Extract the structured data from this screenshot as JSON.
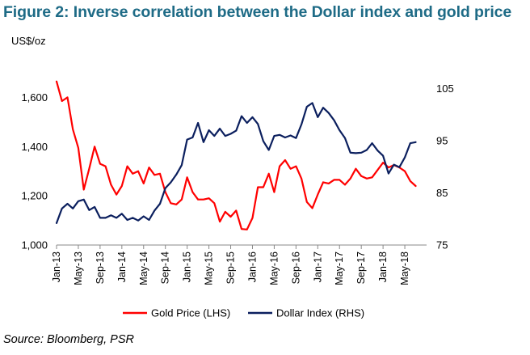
{
  "figure": {
    "title": "Figure 2: Inverse correlation between the Dollar index and gold price",
    "source": "Source: Bloomberg, PSR"
  },
  "chart_data": {
    "type": "line",
    "title": "Figure 2: Inverse correlation between the Dollar index and gold price",
    "left_axis_unit": "US$/oz",
    "left_axis": {
      "min": 1000,
      "max": 1700,
      "ticks": [
        1000,
        1200,
        1400,
        1600
      ],
      "tick_labels": [
        "1,000",
        "1,200",
        "1,400",
        "1,600"
      ]
    },
    "right_axis": {
      "min": 75,
      "max": 108,
      "ticks": [
        75,
        85,
        95,
        105
      ],
      "tick_labels": [
        "75",
        "85",
        "95",
        "105"
      ]
    },
    "x_tick_labels": [
      "Jan-13",
      "May-13",
      "Sep-13",
      "Jan-14",
      "May-14",
      "Sep-14",
      "Jan-15",
      "May-15",
      "Sep-15",
      "Jan-16",
      "May-16",
      "Sep-16",
      "Jan-17",
      "May-17",
      "Sep-17",
      "Jan-18",
      "May-18"
    ],
    "x_tick_month_index": [
      0,
      4,
      8,
      12,
      16,
      20,
      24,
      28,
      32,
      36,
      40,
      44,
      48,
      52,
      56,
      60,
      64
    ],
    "x_range_months": [
      0,
      68
    ],
    "grid": false,
    "legend_placement": "bottom",
    "series": [
      {
        "name": "Gold Price (LHS)",
        "axis": "left",
        "color": "#ff0000",
        "month_index": [
          0,
          1,
          2,
          3,
          4,
          5,
          6,
          7,
          8,
          9,
          10,
          11,
          12,
          13,
          14,
          15,
          16,
          17,
          18,
          19,
          20,
          21,
          22,
          23,
          24,
          25,
          26,
          27,
          28,
          29,
          30,
          31,
          32,
          33,
          34,
          35,
          36,
          37,
          38,
          39,
          40,
          41,
          42,
          43,
          44,
          45,
          46,
          47,
          48,
          49,
          50,
          51,
          52,
          53,
          54,
          55,
          56,
          57,
          58,
          59,
          60,
          61,
          62,
          63,
          64,
          65,
          66
        ],
        "values": [
          1665,
          1585,
          1600,
          1470,
          1395,
          1225,
          1310,
          1400,
          1330,
          1320,
          1245,
          1205,
          1240,
          1320,
          1290,
          1300,
          1250,
          1315,
          1285,
          1290,
          1215,
          1170,
          1165,
          1185,
          1275,
          1215,
          1185,
          1185,
          1190,
          1170,
          1095,
          1135,
          1115,
          1140,
          1065,
          1063,
          1110,
          1235,
          1235,
          1290,
          1215,
          1320,
          1345,
          1310,
          1320,
          1270,
          1175,
          1150,
          1205,
          1255,
          1250,
          1265,
          1265,
          1245,
          1270,
          1310,
          1280,
          1270,
          1275,
          1305,
          1335,
          1315,
          1325,
          1315,
          1300,
          1260,
          1240
        ]
      },
      {
        "name": "Dollar Index (RHS)",
        "axis": "right",
        "color": "#0b1f5e",
        "month_index": [
          0,
          1,
          2,
          3,
          4,
          5,
          6,
          7,
          8,
          9,
          10,
          11,
          12,
          13,
          14,
          15,
          16,
          17,
          18,
          19,
          20,
          21,
          22,
          23,
          24,
          25,
          26,
          27,
          28,
          29,
          30,
          31,
          32,
          33,
          34,
          35,
          36,
          37,
          38,
          39,
          40,
          41,
          42,
          43,
          44,
          45,
          46,
          47,
          48,
          49,
          50,
          51,
          52,
          53,
          54,
          55,
          56,
          57,
          58,
          59,
          60,
          61,
          62,
          63,
          64,
          65,
          66
        ],
        "values": [
          79.2,
          82.0,
          82.9,
          82.0,
          83.4,
          83.7,
          81.7,
          82.3,
          80.2,
          80.2,
          80.7,
          80.2,
          81.0,
          79.8,
          80.2,
          79.7,
          80.5,
          79.8,
          81.6,
          82.9,
          85.9,
          87.0,
          88.5,
          90.3,
          95.2,
          95.6,
          98.4,
          94.7,
          97.0,
          95.9,
          97.3,
          95.9,
          96.3,
          96.9,
          99.7,
          98.4,
          99.5,
          98.2,
          94.9,
          93.2,
          95.9,
          96.1,
          95.6,
          96.0,
          95.5,
          98.1,
          101.5,
          102.2,
          99.5,
          101.3,
          100.3,
          98.9,
          97.0,
          95.5,
          92.7,
          92.6,
          92.7,
          93.2,
          94.5,
          93.1,
          92.1,
          88.7,
          90.4,
          89.9,
          91.8,
          94.5,
          94.7
        ]
      }
    ]
  }
}
